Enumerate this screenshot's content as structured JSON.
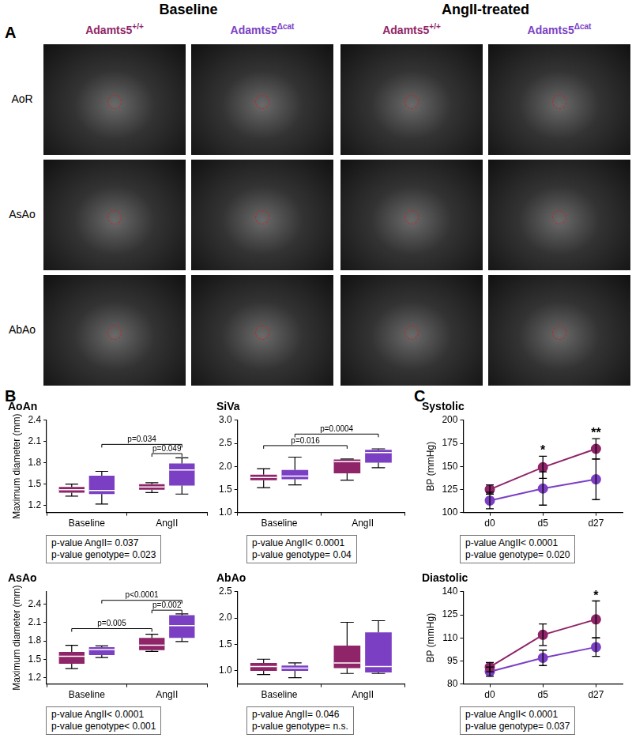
{
  "panel_labels": [
    "A",
    "B",
    "C"
  ],
  "panel_A": {
    "conditions": [
      "Baseline",
      "AngII-treated"
    ],
    "genotypes": [
      {
        "base": "Adamts5",
        "sup": "+/+",
        "color": "#8f2468"
      },
      {
        "base": "Adamts5",
        "sup": "Δcat",
        "color": "#7b3fc4"
      }
    ],
    "rows": [
      "AoR",
      "AsAo",
      "AbAo"
    ]
  },
  "chart_data": [
    {
      "type": "box",
      "title": "AoAn",
      "y_label": "Maximum diameter (mm)",
      "categories": [
        "Baseline",
        "AngII"
      ],
      "series": [
        {
          "name": "Adamts5+/+",
          "color": "#8f2468",
          "values": [
            {
              "min": 1.33,
              "q1": 1.38,
              "median": 1.42,
              "q3": 1.46,
              "max": 1.5
            },
            {
              "min": 1.38,
              "q1": 1.42,
              "median": 1.46,
              "q3": 1.5,
              "max": 1.52
            }
          ]
        },
        {
          "name": "Adamts5Δcat",
          "color": "#7b3fc4",
          "values": [
            {
              "min": 1.22,
              "q1": 1.36,
              "median": 1.41,
              "q3": 1.62,
              "max": 1.68
            },
            {
              "min": 1.36,
              "q1": 1.48,
              "median": 1.7,
              "q3": 1.79,
              "max": 1.87
            }
          ]
        }
      ],
      "ylim": [
        1.1,
        2.4
      ],
      "yticks": [
        1.2,
        1.5,
        1.8,
        2.1,
        2.4
      ],
      "grid": false,
      "annotations": [
        {
          "text": "p=0.034",
          "from": {
            "category": 0,
            "series": 1
          },
          "to": {
            "category": 1,
            "series": 1
          },
          "y": 2.06
        },
        {
          "text": "p=0.049",
          "from": {
            "category": 1,
            "series": 0
          },
          "to": {
            "category": 1,
            "series": 1
          },
          "y": 1.93
        }
      ],
      "stats_box": [
        "p-value AngII= 0.037",
        "p-value genotype= 0.023"
      ]
    },
    {
      "type": "box",
      "title": "SiVa",
      "categories": [
        "Baseline",
        "AngII"
      ],
      "series": [
        {
          "name": "Adamts5+/+",
          "color": "#8f2468",
          "values": [
            {
              "min": 1.54,
              "q1": 1.7,
              "median": 1.76,
              "q3": 1.82,
              "max": 1.95
            },
            {
              "min": 1.7,
              "q1": 1.85,
              "median": 2.1,
              "q3": 2.15,
              "max": 2.16
            }
          ]
        },
        {
          "name": "Adamts5Δcat",
          "color": "#7b3fc4",
          "values": [
            {
              "min": 1.6,
              "q1": 1.72,
              "median": 1.79,
              "q3": 1.92,
              "max": 2.2
            },
            {
              "min": 1.97,
              "q1": 2.08,
              "median": 2.3,
              "q3": 2.36,
              "max": 2.38
            }
          ]
        }
      ],
      "ylim": [
        1.0,
        3.0
      ],
      "yticks": [
        {
          "value": 1.0,
          "label": "1.0"
        },
        1.5,
        {
          "value": 2.0,
          "label": "2.0"
        },
        2.5,
        {
          "value": 3.0,
          "label": "3.0"
        }
      ],
      "grid": false,
      "annotations": [
        {
          "text": "p=0.016",
          "from": {
            "category": 0,
            "series": 0
          },
          "to": {
            "category": 1,
            "series": 0
          },
          "y": 2.45
        },
        {
          "text": "p=0.0004",
          "from": {
            "category": 0,
            "series": 1
          },
          "to": {
            "category": 1,
            "series": 1
          },
          "y": 2.7
        }
      ],
      "stats_box": [
        "p-value AngII< 0.0001",
        "p-value genotype= 0.04"
      ]
    },
    {
      "type": "box",
      "title": "AsAo",
      "y_label": "Maximum diameter (mm)",
      "categories": [
        "Baseline",
        "AngII"
      ],
      "series": [
        {
          "name": "Adamts5+/+",
          "color": "#8f2468",
          "values": [
            {
              "min": 1.35,
              "q1": 1.43,
              "median": 1.55,
              "q3": 1.62,
              "max": 1.73
            },
            {
              "min": 1.63,
              "q1": 1.65,
              "median": 1.73,
              "q3": 1.85,
              "max": 1.91
            }
          ]
        },
        {
          "name": "Adamts5Δcat",
          "color": "#7b3fc4",
          "values": [
            {
              "min": 1.53,
              "q1": 1.57,
              "median": 1.66,
              "q3": 1.7,
              "max": 1.72
            },
            {
              "min": 1.79,
              "q1": 1.85,
              "median": 2.05,
              "q3": 2.22,
              "max": 2.24
            }
          ]
        }
      ],
      "ylim": [
        1.1,
        2.6
      ],
      "yticks": [
        1.2,
        1.5,
        1.8,
        2.1,
        2.4
      ],
      "grid": false,
      "annotations": [
        {
          "text": "p=0.005",
          "from": {
            "category": 0,
            "series": 0
          },
          "to": {
            "category": 1,
            "series": 0
          },
          "y": 2.0
        },
        {
          "text": "p<0.0001",
          "from": {
            "category": 0,
            "series": 1
          },
          "to": {
            "category": 1,
            "series": 1
          },
          "y": 2.46
        },
        {
          "text": "p=0.002",
          "from": {
            "category": 1,
            "series": 0
          },
          "to": {
            "category": 1,
            "series": 1
          },
          "y": 2.3
        }
      ],
      "stats_box": [
        "p-value AngII< 0.0001",
        "p-value genotype< 0.001"
      ]
    },
    {
      "type": "box",
      "title": "AbAo",
      "categories": [
        "Baseline",
        "AngII"
      ],
      "series": [
        {
          "name": "Adamts5+/+",
          "color": "#8f2468",
          "values": [
            {
              "min": 0.93,
              "q1": 1.0,
              "median": 1.08,
              "q3": 1.15,
              "max": 1.22
            },
            {
              "min": 0.95,
              "q1": 1.05,
              "median": 1.15,
              "q3": 1.48,
              "max": 1.92
            }
          ]
        },
        {
          "name": "Adamts5Δcat",
          "color": "#7b3fc4",
          "values": [
            {
              "min": 0.87,
              "q1": 1.0,
              "median": 1.05,
              "q3": 1.1,
              "max": 1.15
            },
            {
              "min": 0.95,
              "q1": 0.97,
              "median": 1.08,
              "q3": 1.73,
              "max": 1.95
            }
          ]
        }
      ],
      "ylim": [
        0.75,
        2.5
      ],
      "yticks": [
        {
          "value": 1.0,
          "label": "1.0"
        },
        1.5,
        {
          "value": 2.0,
          "label": "2.0"
        },
        2.5
      ],
      "grid": false,
      "annotations": [],
      "stats_box": [
        "p-value AngII= 0.046",
        "p-value genotype= n.s."
      ]
    },
    {
      "type": "line",
      "title": "Systolic",
      "y_label": "BP (mmHg)",
      "categories": [
        "d0",
        "d5",
        "d27"
      ],
      "marker": "circle",
      "series": [
        {
          "name": "Adamts5+/+",
          "color": "#8f2468",
          "values": [
            125,
            149,
            169
          ],
          "error": [
            5,
            12,
            11
          ]
        },
        {
          "name": "Adamts5Δcat",
          "color": "#7b3fc4",
          "values": [
            113,
            126,
            136
          ],
          "error": [
            9,
            18,
            22
          ]
        }
      ],
      "ylim": [
        100,
        200
      ],
      "yticks": [
        100,
        125,
        150,
        175,
        200
      ],
      "grid": false,
      "annotations": [
        {
          "text": "*",
          "category": 1,
          "y": 167
        },
        {
          "text": "**",
          "category": 2,
          "y": 186
        }
      ],
      "stats_box": [
        "p-value AngII< 0.0001",
        "p-value genotype= 0.020"
      ]
    },
    {
      "type": "line",
      "title": "Diastolic",
      "y_label": "BP (mmHg)",
      "categories": [
        "d0",
        "d5",
        "d27"
      ],
      "marker": "circle",
      "series": [
        {
          "name": "Adamts5+/+",
          "color": "#8f2468",
          "values": [
            91,
            112,
            122
          ],
          "error": [
            3,
            7,
            12
          ]
        },
        {
          "name": "Adamts5Δcat",
          "color": "#7b3fc4",
          "values": [
            88,
            97,
            104
          ],
          "error": [
            3,
            5,
            6
          ]
        }
      ],
      "ylim": [
        80,
        140
      ],
      "yticks": [
        80,
        95,
        110,
        125,
        140
      ],
      "grid": false,
      "annotations": [
        {
          "text": "*",
          "category": 2,
          "y": 137
        }
      ],
      "stats_box": [
        "p-value AngII< 0.0001",
        "p-value genotype= 0.037"
      ]
    }
  ]
}
